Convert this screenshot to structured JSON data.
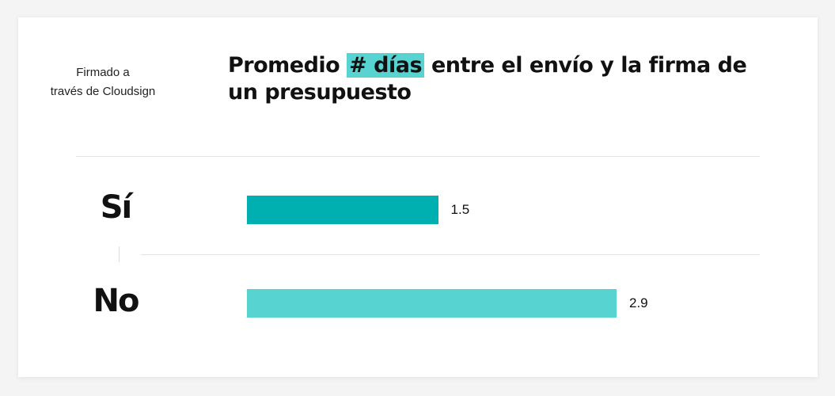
{
  "header": {
    "row_caption": "Firmado a\ntravés de Cloudsign",
    "title_before": "Promedio ",
    "title_highlight": "# días",
    "title_after": " entre el envío y la firma de un presupuesto"
  },
  "colors": {
    "highlight": "#57d3d2",
    "bar_si": "#00b0b0",
    "bar_no": "#57d3d2"
  },
  "chart_data": {
    "type": "bar",
    "orientation": "horizontal",
    "title": "Promedio # días entre el envío y la firma de un presupuesto",
    "ylabel": "Firmado a través de Cloudsign",
    "categories": [
      "Sí",
      "No"
    ],
    "values": [
      1.5,
      2.9
    ],
    "value_labels": [
      "1.5",
      "2.9"
    ],
    "xlim": [
      0,
      3.0
    ],
    "grid": false,
    "legend": "none"
  }
}
